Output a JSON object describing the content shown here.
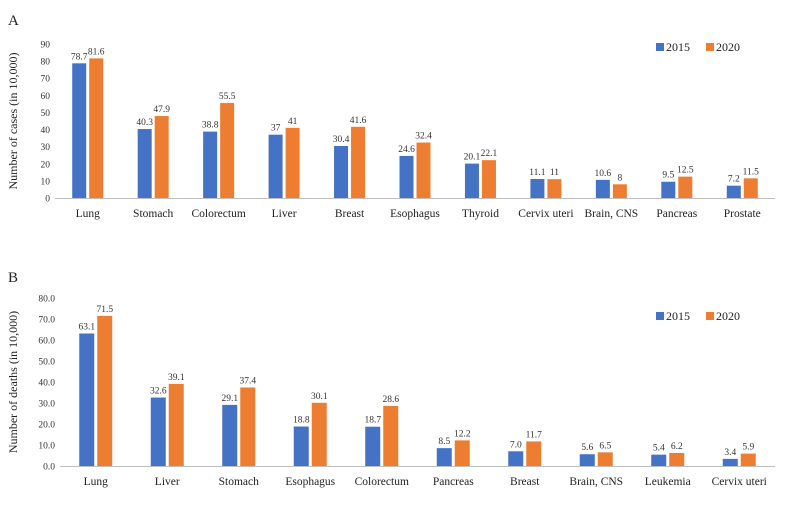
{
  "chart_data": [
    {
      "type": "bar",
      "panel_label": "A",
      "ylabel": "Number of cases (in 10,000)",
      "ylim": [
        0,
        90
      ],
      "yticks": [
        "0",
        "10",
        "20",
        "30",
        "40",
        "50",
        "60",
        "70",
        "80",
        "90"
      ],
      "grid": false,
      "legend_position": "top-right",
      "categories": [
        "Lung",
        "Stomach",
        "Colorectum",
        "Liver",
        "Breast",
        "Esophagus",
        "Thyroid",
        "Cervix uteri",
        "Brain, CNS",
        "Pancreas",
        "Prostate"
      ],
      "series": [
        {
          "name": "2015",
          "color": "#4472c4",
          "values": [
            78.7,
            40.3,
            38.8,
            37,
            30.4,
            24.6,
            20.1,
            11.1,
            10.6,
            9.5,
            7.2
          ],
          "labels": [
            "78.7",
            "40.3",
            "38.8",
            "37",
            "30.4",
            "24.6",
            "20.1",
            "11.1",
            "10.6",
            "9.5",
            "7.2"
          ]
        },
        {
          "name": "2020",
          "color": "#ed7d31",
          "values": [
            81.6,
            47.9,
            55.5,
            41,
            41.6,
            32.4,
            22.1,
            11,
            8,
            12.5,
            11.5
          ],
          "labels": [
            "81.6",
            "47.9",
            "55.5",
            "41",
            "41.6",
            "32.4",
            "22.1",
            "11",
            "8",
            "12.5",
            "11.5"
          ]
        }
      ]
    },
    {
      "type": "bar",
      "panel_label": "B",
      "ylabel": "Number of deaths (in 10,000)",
      "ylim": [
        0,
        80
      ],
      "yticks": [
        "0.0",
        "10.0",
        "20.0",
        "30.0",
        "40.0",
        "50.0",
        "60.0",
        "70.0",
        "80.0"
      ],
      "grid": false,
      "legend_position": "top-right",
      "categories": [
        "Lung",
        "Liver",
        "Stomach",
        "Esophagus",
        "Colorectum",
        "Pancreas",
        "Breast",
        "Brain, CNS",
        "Leukemia",
        "Cervix uteri"
      ],
      "series": [
        {
          "name": "2015",
          "color": "#4472c4",
          "values": [
            63.1,
            32.6,
            29.1,
            18.8,
            18.7,
            8.5,
            7.0,
            5.6,
            5.4,
            3.4
          ],
          "labels": [
            "63.1",
            "32.6",
            "29.1",
            "18.8",
            "18.7",
            "8.5",
            "7.0",
            "5.6",
            "5.4",
            "3.4"
          ]
        },
        {
          "name": "2020",
          "color": "#ed7d31",
          "values": [
            71.5,
            39.1,
            37.4,
            30.1,
            28.6,
            12.2,
            11.7,
            6.5,
            6.2,
            5.9
          ],
          "labels": [
            "71.5",
            "39.1",
            "37.4",
            "30.1",
            "28.6",
            "12.2",
            "11.7",
            "6.5",
            "6.2",
            "5.9"
          ]
        }
      ]
    }
  ]
}
